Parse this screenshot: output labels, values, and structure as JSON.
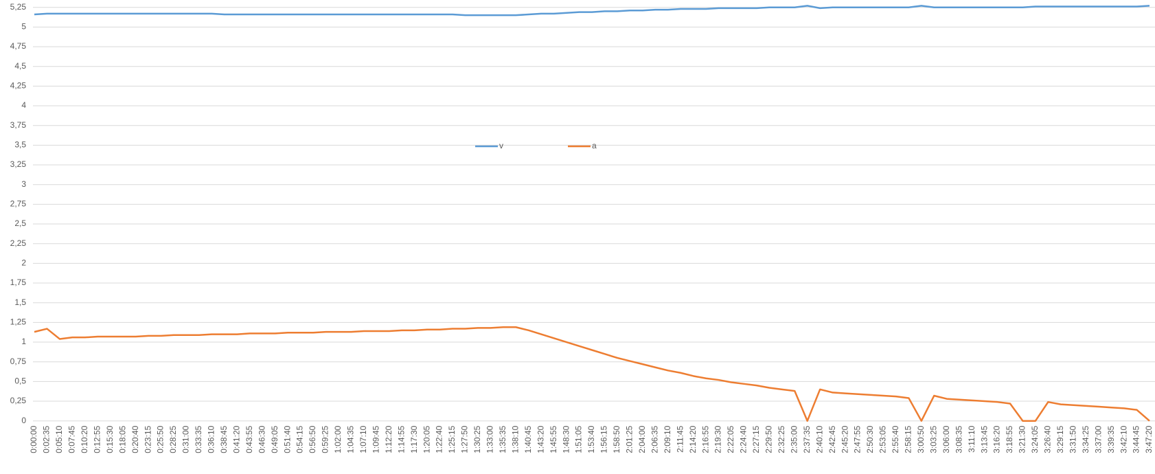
{
  "chart_data": {
    "type": "line",
    "categories": [
      "0:00:00",
      "0:02:35",
      "0:05:10",
      "0:07:45",
      "0:10:20",
      "0:12:55",
      "0:15:30",
      "0:18:05",
      "0:20:40",
      "0:23:15",
      "0:25:50",
      "0:28:25",
      "0:31:00",
      "0:33:35",
      "0:36:10",
      "0:38:45",
      "0:41:20",
      "0:43:55",
      "0:46:30",
      "0:49:05",
      "0:51:40",
      "0:54:15",
      "0:56:50",
      "0:59:25",
      "1:02:00",
      "1:04:35",
      "1:07:10",
      "1:09:45",
      "1:12:20",
      "1:14:55",
      "1:17:30",
      "1:20:05",
      "1:22:40",
      "1:25:15",
      "1:27:50",
      "1:30:25",
      "1:33:00",
      "1:35:35",
      "1:38:10",
      "1:40:45",
      "1:43:20",
      "1:45:55",
      "1:48:30",
      "1:51:05",
      "1:53:40",
      "1:56:15",
      "1:58:50",
      "2:01:25",
      "2:04:00",
      "2:06:35",
      "2:09:10",
      "2:11:45",
      "2:14:20",
      "2:16:55",
      "2:19:30",
      "2:22:05",
      "2:24:40",
      "2:27:15",
      "2:29:50",
      "2:32:25",
      "2:35:00",
      "2:37:35",
      "2:40:10",
      "2:42:45",
      "2:45:20",
      "2:47:55",
      "2:50:30",
      "2:53:05",
      "2:55:40",
      "2:58:15",
      "3:00:50",
      "3:03:25",
      "3:06:00",
      "3:08:35",
      "3:11:10",
      "3:13:45",
      "3:16:20",
      "3:18:55",
      "3:21:30",
      "3:24:05",
      "3:26:40",
      "3:29:15",
      "3:31:50",
      "3:34:25",
      "3:37:00",
      "3:39:35",
      "3:42:10",
      "3:44:45",
      "3:47:20"
    ],
    "series": [
      {
        "name": "v",
        "color": "#5b9bd5",
        "values": [
          5.16,
          5.17,
          5.17,
          5.17,
          5.17,
          5.17,
          5.17,
          5.17,
          5.17,
          5.17,
          5.17,
          5.17,
          5.17,
          5.17,
          5.17,
          5.16,
          5.16,
          5.16,
          5.16,
          5.16,
          5.16,
          5.16,
          5.16,
          5.16,
          5.16,
          5.16,
          5.16,
          5.16,
          5.16,
          5.16,
          5.16,
          5.16,
          5.16,
          5.16,
          5.15,
          5.15,
          5.15,
          5.15,
          5.15,
          5.16,
          5.17,
          5.17,
          5.18,
          5.19,
          5.19,
          5.2,
          5.2,
          5.21,
          5.21,
          5.22,
          5.22,
          5.23,
          5.23,
          5.23,
          5.24,
          5.24,
          5.24,
          5.24,
          5.25,
          5.25,
          5.25,
          5.27,
          5.24,
          5.25,
          5.25,
          5.25,
          5.25,
          5.25,
          5.25,
          5.25,
          5.27,
          5.25,
          5.25,
          5.25,
          5.25,
          5.25,
          5.25,
          5.25,
          5.25,
          5.26,
          5.26,
          5.26,
          5.26,
          5.26,
          5.26,
          5.26,
          5.26,
          5.26,
          5.27
        ]
      },
      {
        "name": "a",
        "color": "#ed7d31",
        "values": [
          1.13,
          1.17,
          1.04,
          1.06,
          1.06,
          1.07,
          1.07,
          1.07,
          1.07,
          1.08,
          1.08,
          1.09,
          1.09,
          1.09,
          1.1,
          1.1,
          1.1,
          1.11,
          1.11,
          1.11,
          1.12,
          1.12,
          1.12,
          1.13,
          1.13,
          1.13,
          1.14,
          1.14,
          1.14,
          1.15,
          1.15,
          1.16,
          1.16,
          1.17,
          1.17,
          1.18,
          1.18,
          1.19,
          1.19,
          1.15,
          1.1,
          1.05,
          1.0,
          0.95,
          0.9,
          0.85,
          0.8,
          0.76,
          0.72,
          0.68,
          0.64,
          0.61,
          0.57,
          0.54,
          0.52,
          0.49,
          0.47,
          0.45,
          0.42,
          0.4,
          0.38,
          0,
          0.4,
          0.36,
          0.35,
          0.34,
          0.33,
          0.32,
          0.31,
          0.29,
          0,
          0.32,
          0.28,
          0.27,
          0.26,
          0.25,
          0.24,
          0.22,
          0,
          0,
          0.24,
          0.21,
          0.2,
          0.19,
          0.18,
          0.17,
          0.16,
          0.14,
          0
        ]
      }
    ],
    "ylim": [
      0,
      5.25
    ],
    "yticks": [
      0,
      {
        "value": 0.25,
        "label": "0,25"
      },
      {
        "value": 0.5,
        "label": "0,5"
      },
      {
        "value": 0.75,
        "label": "0,75"
      },
      1,
      {
        "value": 1.25,
        "label": "1,25"
      },
      {
        "value": 1.5,
        "label": "1,5"
      },
      {
        "value": 1.75,
        "label": "1,75"
      },
      2,
      {
        "value": 2.25,
        "label": "2,25"
      },
      {
        "value": 2.5,
        "label": "2,5"
      },
      {
        "value": 2.75,
        "label": "2,75"
      },
      3,
      {
        "value": 3.25,
        "label": "3,25"
      },
      {
        "value": 3.5,
        "label": "3,5"
      },
      {
        "value": 3.75,
        "label": "3,75"
      },
      4,
      {
        "value": 4.25,
        "label": "4,25"
      },
      {
        "value": 4.5,
        "label": "4,5"
      },
      {
        "value": 4.75,
        "label": "4,75"
      },
      5,
      {
        "value": 5.25,
        "label": "5,25"
      }
    ],
    "grid": true,
    "legend": "center"
  }
}
